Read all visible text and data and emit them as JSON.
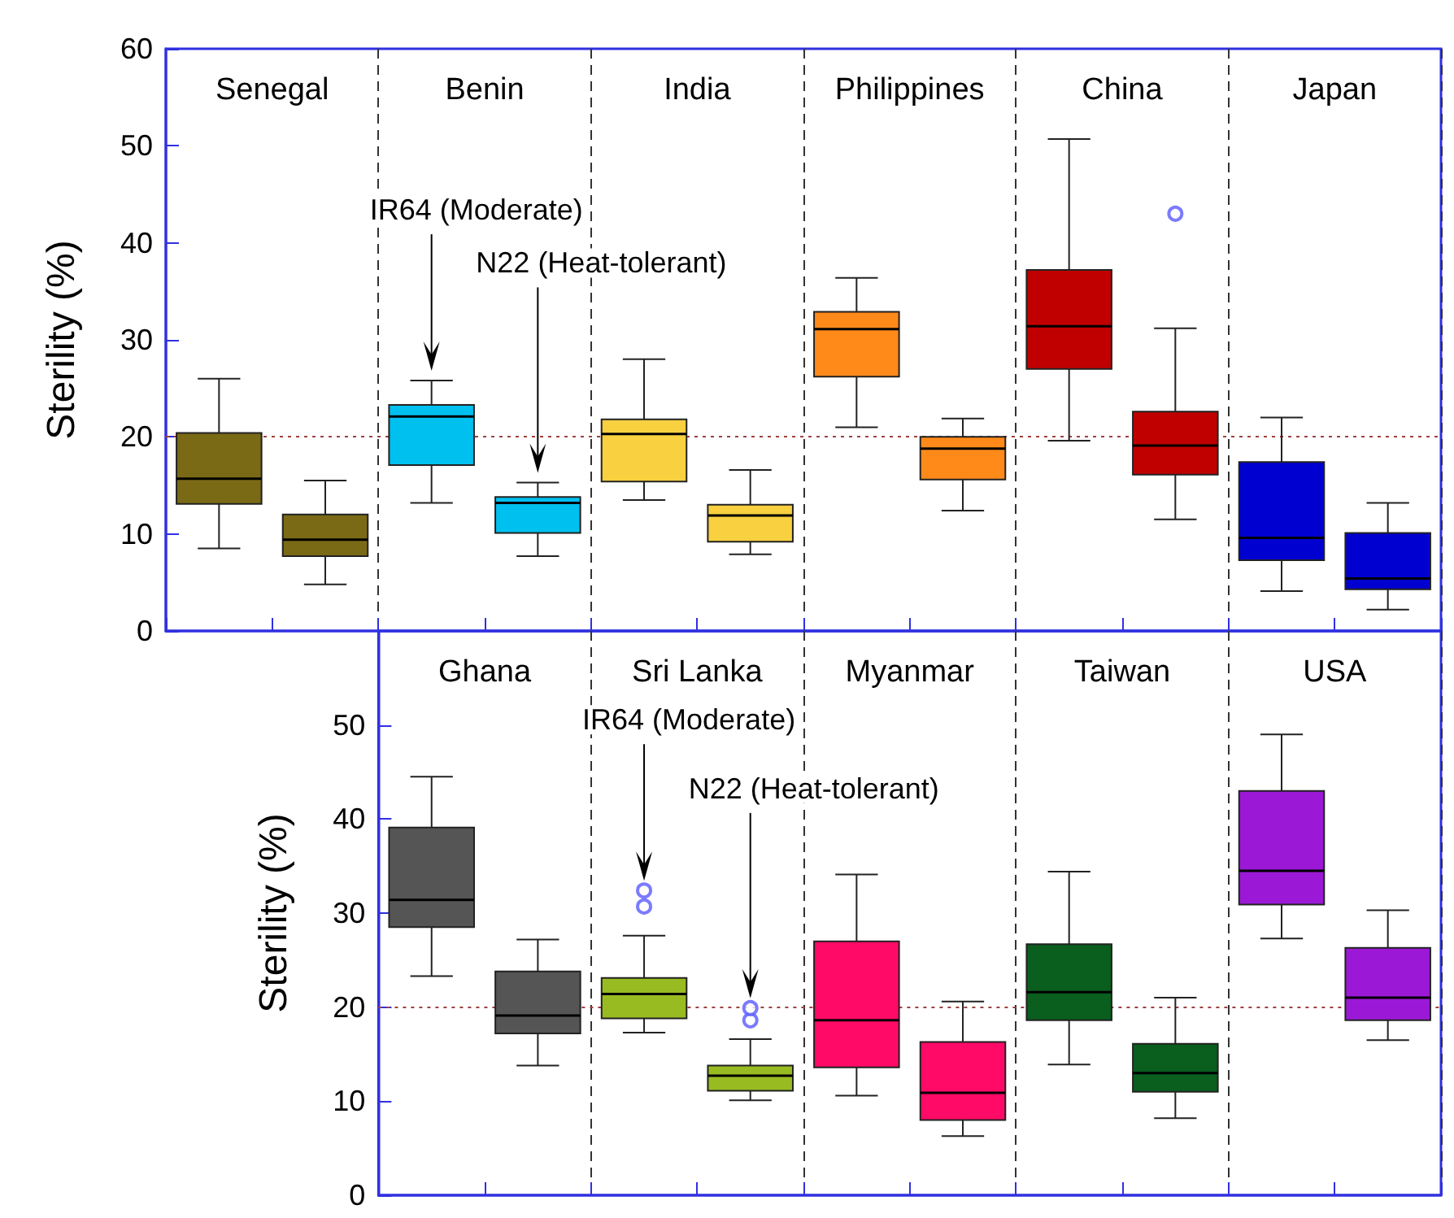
{
  "chart_data": [
    {
      "type": "box",
      "ylabel": "Sterility (%)",
      "categories": [
        null,
        null,
        null,
        null,
        null,
        null,
        null,
        null,
        null,
        null,
        null,
        null
      ],
      "ylim": [
        0,
        60
      ],
      "yticks": [
        0,
        10,
        20,
        30,
        40,
        50,
        60
      ],
      "tick_labels": "y",
      "grid": "x",
      "colors": [
        "#7a6a16",
        "#7a6a16",
        "#00c0f0",
        "#00c0f0",
        "#f8d040",
        "#f8d040",
        "#ff8a1a",
        "#ff8a1a",
        "#c00000",
        "#c00000",
        "#0000d0",
        "#0000d0"
      ],
      "boxes": [
        {
          "low": 8.5,
          "q1": 13.1,
          "median": 15.7,
          "q3": 20.4,
          "high": 26.0
        },
        {
          "low": 4.8,
          "q1": 7.7,
          "median": 9.4,
          "q3": 12.0,
          "high": 15.5
        },
        {
          "low": 13.2,
          "q1": 17.1,
          "median": 22.1,
          "q3": 23.3,
          "high": 25.8
        },
        {
          "low": 7.7,
          "q1": 10.1,
          "median": 13.2,
          "q3": 13.8,
          "high": 15.3
        },
        {
          "low": 13.5,
          "q1": 15.4,
          "median": 20.3,
          "q3": 21.8,
          "high": 28.0
        },
        {
          "low": 7.9,
          "q1": 9.2,
          "median": 11.9,
          "q3": 13.0,
          "high": 16.6
        },
        {
          "low": 21.0,
          "q1": 26.2,
          "median": 31.1,
          "q3": 32.9,
          "high": 36.4
        },
        {
          "low": 12.4,
          "q1": 15.6,
          "median": 18.8,
          "q3": 20.0,
          "high": 21.9
        },
        {
          "low": 19.6,
          "q1": 27.0,
          "median": 31.4,
          "q3": 37.2,
          "high": 50.7
        },
        {
          "low": 11.5,
          "q1": 16.1,
          "median": 19.1,
          "q3": 22.6,
          "high": 31.2,
          "outliers": [
            43.0
          ]
        },
        {
          "low": 4.1,
          "q1": 7.3,
          "median": 9.6,
          "q3": 17.4,
          "high": 22.0
        },
        {
          "low": 2.2,
          "q1": 4.3,
          "median": 5.4,
          "q3": 10.1,
          "high": 13.2
        }
      ],
      "ref_lines": [
        {
          "axis": "y",
          "value": 20,
          "color": "#a04040",
          "line_style": "dotted"
        }
      ],
      "annotations": [
        "Senegal",
        "Benin",
        "India",
        "Philippines",
        "China",
        "Japan",
        "IR64 (Moderate)",
        "N22 (Heat-tolerant)"
      ]
    },
    {
      "type": "box",
      "ylabel": "Sterility (%)",
      "categories": [
        null,
        null,
        null,
        null,
        null,
        null,
        null,
        null,
        null,
        null
      ],
      "ylim": [
        0,
        60
      ],
      "yticks": [
        0,
        10,
        20,
        30,
        40,
        50
      ],
      "tick_labels": "y",
      "grid": "x",
      "colors": [
        "#555555",
        "#555555",
        "#99bb22",
        "#99bb22",
        "#ff0a66",
        "#ff0a66",
        "#0a5e1e",
        "#0a5e1e",
        "#9b19d6",
        "#9b19d6"
      ],
      "boxes": [
        {
          "low": 23.3,
          "q1": 28.5,
          "median": 31.4,
          "q3": 39.1,
          "high": 44.5
        },
        {
          "low": 13.8,
          "q1": 17.2,
          "median": 19.1,
          "q3": 23.8,
          "high": 27.2
        },
        {
          "low": 17.3,
          "q1": 18.8,
          "median": 21.4,
          "q3": 23.1,
          "high": 27.6,
          "outliers": [
            30.7,
            32.4
          ]
        },
        {
          "low": 10.1,
          "q1": 11.1,
          "median": 12.7,
          "q3": 13.8,
          "high": 16.6,
          "outliers": [
            18.6,
            19.9
          ]
        },
        {
          "low": 10.6,
          "q1": 13.6,
          "median": 18.6,
          "q3": 27.0,
          "high": 34.1
        },
        {
          "low": 6.3,
          "q1": 8.0,
          "median": 10.9,
          "q3": 16.3,
          "high": 20.6
        },
        {
          "low": 13.9,
          "q1": 18.6,
          "median": 21.6,
          "q3": 26.7,
          "high": 34.4
        },
        {
          "low": 8.2,
          "q1": 11.0,
          "median": 13.0,
          "q3": 16.1,
          "high": 21.0
        },
        {
          "low": 27.3,
          "q1": 30.9,
          "median": 34.5,
          "q3": 43.0,
          "high": 49.0
        },
        {
          "low": 16.5,
          "q1": 18.6,
          "median": 21.0,
          "q3": 26.3,
          "high": 30.3
        }
      ],
      "ref_lines": [
        {
          "axis": "y",
          "value": 20,
          "color": "#a04040",
          "line_style": "dotted"
        }
      ],
      "annotations": [
        "Ghana",
        "Sri Lanka",
        "Myanmar",
        "Taiwan",
        "USA",
        "IR64 (Moderate)",
        "N22 (Heat-tolerant)"
      ]
    }
  ]
}
